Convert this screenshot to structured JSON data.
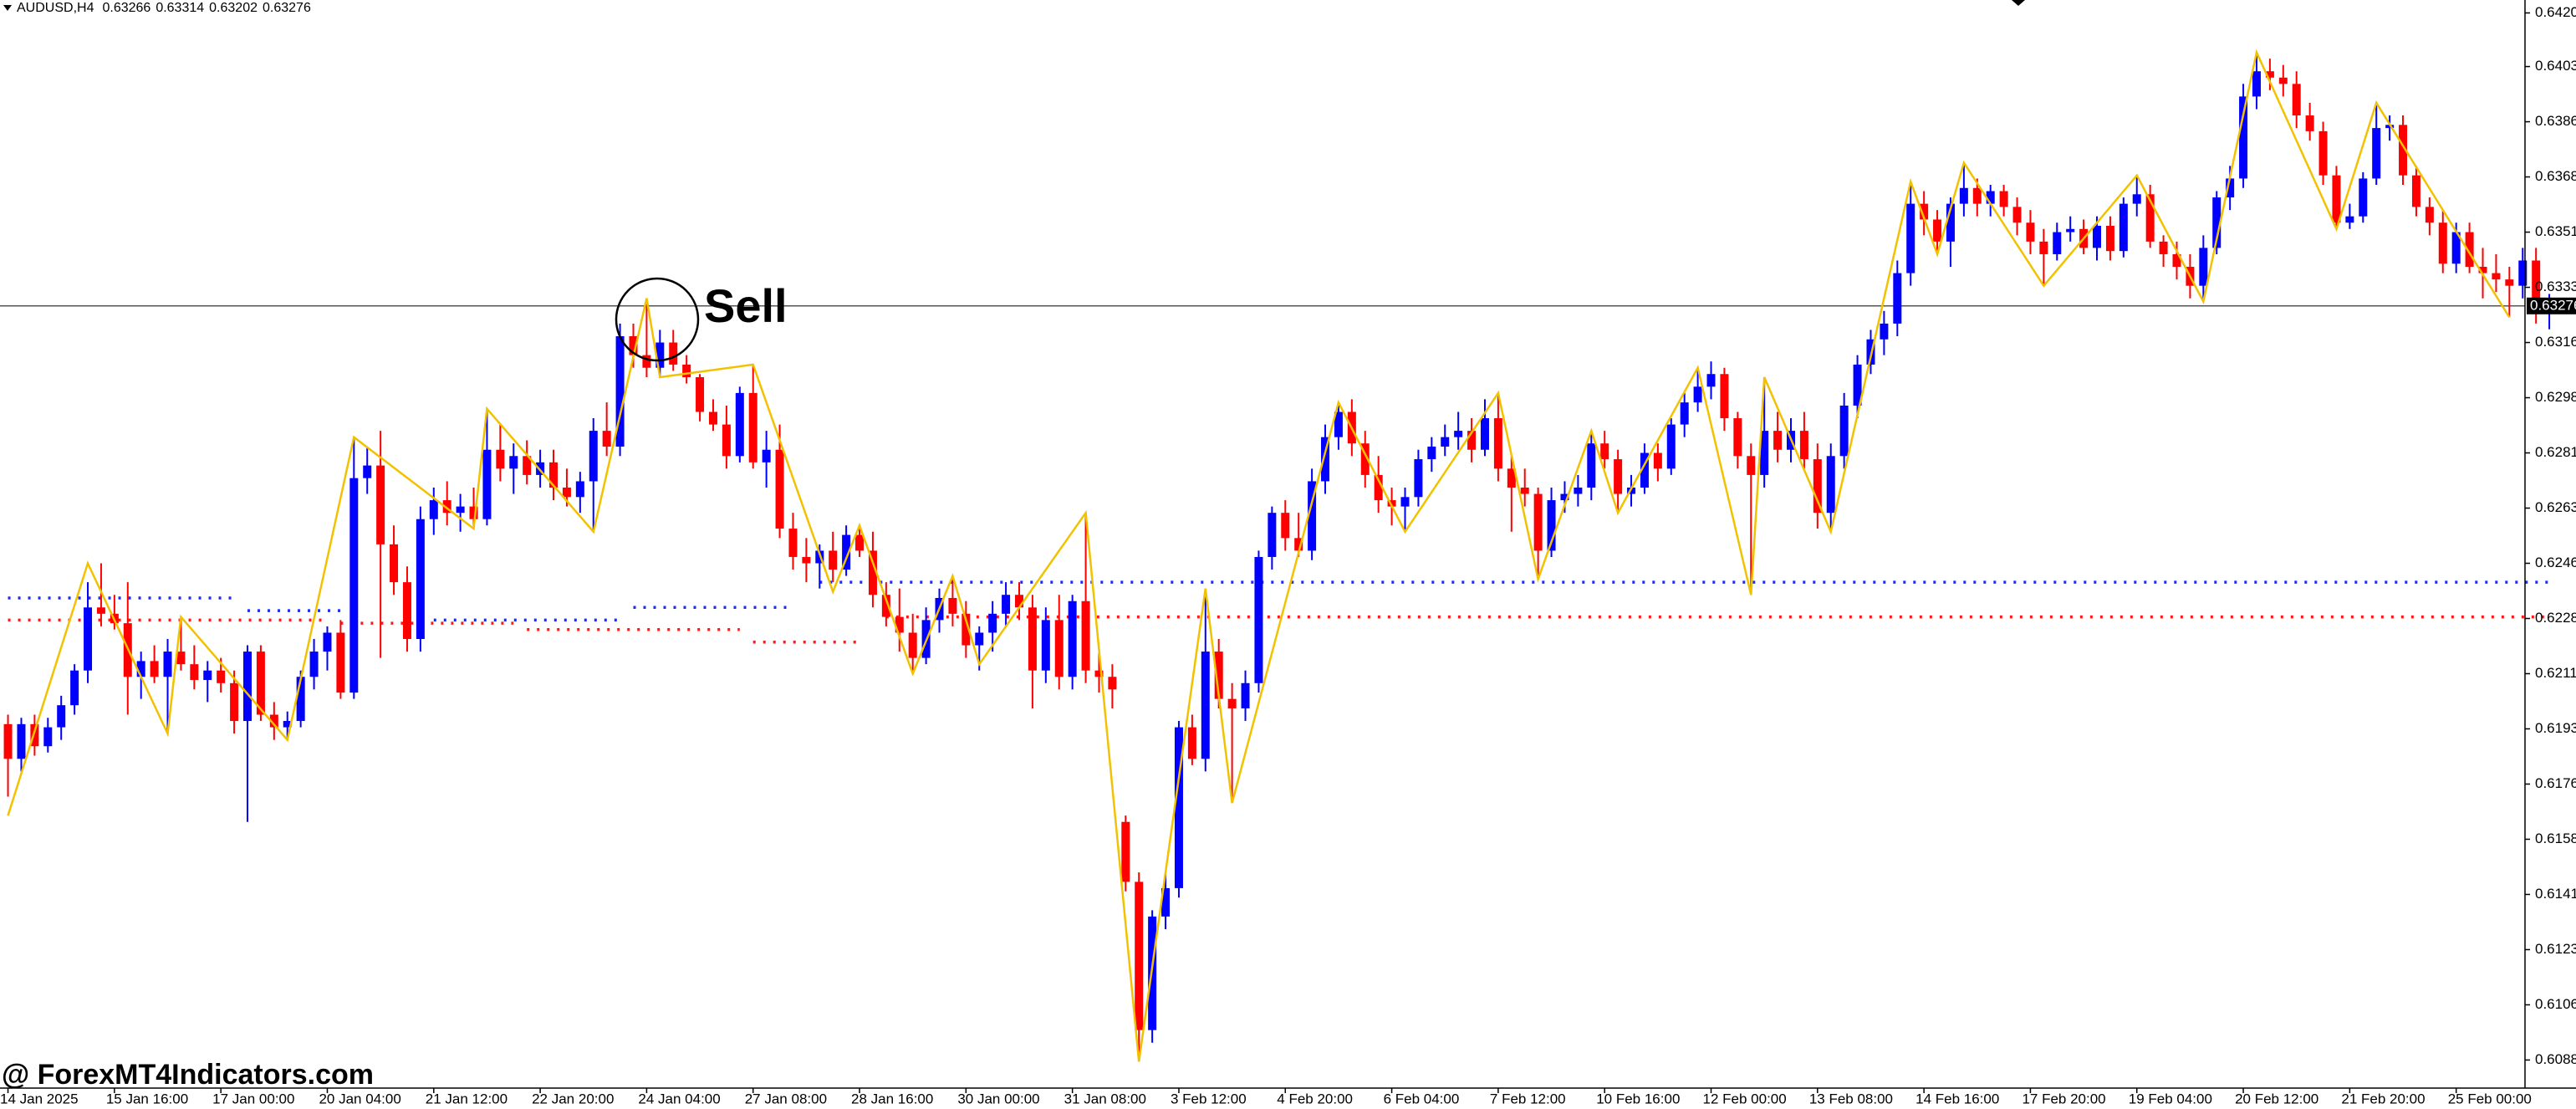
{
  "chart_data": {
    "type": "candlestick",
    "symbol": "AUDUSD,H4",
    "header_values": [
      0.63266,
      0.63314,
      0.63202,
      0.63276
    ],
    "annotation": "Sell",
    "watermark": "@ ForexMT4Indicators.com",
    "colors": {
      "up": "#0000ff",
      "down": "#ff0000",
      "zigzag": "#f2c200",
      "blue_levels": "#1a2cff",
      "red_levels": "#ff1a1a",
      "current_price": "#555555"
    },
    "ylim": [
      0.60796,
      0.64246
    ],
    "xlim": [
      -0.6,
      192
    ],
    "yticks": [
      0.64205,
      0.64035,
      {
        "value": 0.6386,
        "label": "0.63860"
      },
      0.63685,
      {
        "value": 0.6351,
        "label": "0.63510"
      },
      0.63335,
      {
        "value": 0.6316,
        "label": "0.63160"
      },
      0.62985,
      {
        "value": 0.6281,
        "label": "0.62810"
      },
      0.62635,
      {
        "value": 0.6246,
        "label": "0.62460"
      },
      0.62285,
      {
        "value": 0.6211,
        "label": "0.62110"
      },
      0.61935,
      {
        "value": 0.6176,
        "label": "0.61760"
      },
      0.61585,
      {
        "value": 0.6141,
        "label": "0.61410"
      },
      0.61235,
      {
        "value": 0.6106,
        "label": "0.61060"
      },
      0.60885
    ],
    "current_price": 0.63276,
    "categories": [
      "14 Jan 2025",
      null,
      null,
      null,
      null,
      null,
      null,
      null,
      "15 Jan 16:00",
      null,
      null,
      null,
      null,
      null,
      null,
      null,
      "17 Jan 00:00",
      null,
      null,
      null,
      null,
      null,
      null,
      null,
      "20 Jan 04:00",
      null,
      null,
      null,
      null,
      null,
      null,
      null,
      "21 Jan 12:00",
      null,
      null,
      null,
      null,
      null,
      null,
      null,
      "22 Jan 20:00",
      null,
      null,
      null,
      null,
      null,
      null,
      null,
      "24 Jan 04:00",
      null,
      null,
      null,
      null,
      null,
      null,
      null,
      "27 Jan 08:00",
      null,
      null,
      null,
      null,
      null,
      null,
      null,
      "28 Jan 16:00",
      null,
      null,
      null,
      null,
      null,
      null,
      null,
      "30 Jan 00:00",
      null,
      null,
      null,
      null,
      null,
      null,
      null,
      "31 Jan 08:00",
      null,
      null,
      null,
      null,
      null,
      null,
      null,
      "3 Feb 12:00",
      null,
      null,
      null,
      null,
      null,
      null,
      null,
      "4 Feb 20:00",
      null,
      null,
      null,
      null,
      null,
      null,
      null,
      "6 Feb 04:00",
      null,
      null,
      null,
      null,
      null,
      null,
      null,
      "7 Feb 12:00",
      null,
      null,
      null,
      null,
      null,
      null,
      null,
      "10 Feb 16:00",
      null,
      null,
      null,
      null,
      null,
      null,
      null,
      "12 Feb 00:00",
      null,
      null,
      null,
      null,
      null,
      null,
      null,
      "13 Feb 08:00",
      null,
      null,
      null,
      null,
      null,
      null,
      null,
      "14 Feb 16:00",
      null,
      null,
      null,
      null,
      null,
      null,
      null,
      "17 Feb 20:00",
      null,
      null,
      null,
      null,
      null,
      null,
      null,
      "19 Feb 04:00",
      null,
      null,
      null,
      null,
      null,
      null,
      null,
      "20 Feb 12:00",
      null,
      null,
      null,
      null,
      null,
      null,
      null,
      "21 Feb 20:00",
      null,
      null,
      null,
      null,
      null,
      null,
      null,
      "25 Feb 00:00",
      null,
      null,
      null,
      null,
      null,
      null,
      null
    ],
    "open": [
      0.6195,
      0.6184,
      0.6195,
      0.6188,
      0.6194,
      0.6201,
      0.6212,
      0.6232,
      0.623,
      0.6227,
      0.621,
      0.6215,
      0.621,
      0.6218,
      0.6214,
      0.6209,
      0.6212,
      0.6208,
      0.6196,
      0.6218,
      0.6198,
      0.6194,
      0.6196,
      0.621,
      0.6218,
      0.6224,
      0.6205,
      0.6273,
      0.6277,
      0.6252,
      0.624,
      0.6222,
      0.626,
      0.6266,
      0.6262,
      0.6264,
      0.626,
      0.6282,
      0.6276,
      0.628,
      0.6274,
      0.6278,
      0.627,
      0.6267,
      0.6272,
      0.6288,
      0.6283,
      0.6318,
      0.6312,
      0.6308,
      0.6316,
      0.6309,
      0.6305,
      0.6294,
      0.629,
      0.628,
      0.63,
      0.6278,
      0.6282,
      0.6257,
      0.6248,
      0.6246,
      0.625,
      0.6244,
      0.6255,
      0.625,
      0.6236,
      0.6229,
      0.6224,
      0.6216,
      0.6228,
      0.6235,
      0.623,
      0.622,
      0.6224,
      0.623,
      0.6236,
      0.6232,
      0.6212,
      0.6228,
      0.621,
      0.6234,
      0.6212,
      0.621,
      0.6164,
      0.6145,
      0.6098,
      0.6134,
      0.6143,
      0.6194,
      0.6184,
      0.6218,
      0.6203,
      0.62,
      0.6208,
      0.6248,
      0.6262,
      0.6254,
      0.625,
      0.6272,
      0.6286,
      0.6294,
      0.6284,
      0.6274,
      0.6266,
      0.6264,
      0.6267,
      0.6279,
      0.6283,
      0.6286,
      0.6288,
      0.6282,
      0.6292,
      0.6276,
      0.627,
      0.6268,
      0.625,
      0.6266,
      0.6268,
      0.627,
      0.6284,
      0.6279,
      0.6268,
      0.627,
      0.6281,
      0.6276,
      0.629,
      0.6297,
      0.6302,
      0.6306,
      0.6292,
      0.628,
      0.6274,
      0.6288,
      0.6282,
      0.6288,
      0.6279,
      0.6262,
      0.628,
      0.6296,
      0.6309,
      0.6317,
      0.6322,
      0.6338,
      0.636,
      0.6355,
      0.6348,
      0.636,
      0.6365,
      0.636,
      0.6364,
      0.6359,
      0.6354,
      0.6348,
      0.6344,
      0.6351,
      0.6352,
      0.6346,
      0.6353,
      0.6345,
      0.636,
      0.6363,
      0.6348,
      0.6344,
      0.634,
      0.6334,
      0.6346,
      0.6362,
      0.6368,
      0.6394,
      0.6402,
      0.64,
      0.6398,
      0.6388,
      0.6383,
      0.6369,
      0.6354,
      0.6356,
      0.6368,
      0.6384,
      0.6385,
      0.6369,
      0.6359,
      0.6354,
      0.6341,
      0.6351,
      0.634,
      0.6338,
      0.6336,
      0.6334,
      0.6342,
      0.63266
    ],
    "high": [
      0.6198,
      0.6197,
      0.6198,
      0.6197,
      0.6204,
      0.6214,
      0.624,
      0.6246,
      0.6236,
      0.624,
      0.6218,
      0.622,
      0.6222,
      0.6229,
      0.622,
      0.6215,
      0.6216,
      0.6212,
      0.622,
      0.622,
      0.6202,
      0.6199,
      0.6212,
      0.6222,
      0.6226,
      0.6228,
      0.6286,
      0.6283,
      0.6288,
      0.6258,
      0.6245,
      0.6264,
      0.627,
      0.6272,
      0.6268,
      0.627,
      0.6295,
      0.629,
      0.6284,
      0.6285,
      0.6282,
      0.6282,
      0.6276,
      0.6275,
      0.6292,
      0.6297,
      0.6322,
      0.6322,
      0.633,
      0.632,
      0.632,
      0.6312,
      0.6306,
      0.6298,
      0.6296,
      0.6302,
      0.6309,
      0.6288,
      0.629,
      0.6262,
      0.6254,
      0.6252,
      0.6256,
      0.6258,
      0.6258,
      0.6256,
      0.624,
      0.6238,
      0.623,
      0.6232,
      0.6238,
      0.6242,
      0.6234,
      0.6226,
      0.6234,
      0.624,
      0.624,
      0.6236,
      0.6232,
      0.6236,
      0.6236,
      0.6262,
      0.6218,
      0.6214,
      0.6166,
      0.6148,
      0.6136,
      0.6148,
      0.6196,
      0.6198,
      0.6238,
      0.6222,
      0.6208,
      0.6212,
      0.625,
      0.6264,
      0.6266,
      0.6262,
      0.6276,
      0.629,
      0.6297,
      0.6298,
      0.6288,
      0.628,
      0.627,
      0.627,
      0.6282,
      0.6286,
      0.629,
      0.6294,
      0.6292,
      0.6298,
      0.63,
      0.628,
      0.6276,
      0.627,
      0.627,
      0.6272,
      0.6274,
      0.6288,
      0.6288,
      0.6282,
      0.6274,
      0.6284,
      0.6284,
      0.6292,
      0.63,
      0.6308,
      0.631,
      0.6308,
      0.6294,
      0.6284,
      0.6305,
      0.6294,
      0.6292,
      0.6294,
      0.6284,
      0.6284,
      0.63,
      0.6312,
      0.632,
      0.6326,
      0.6342,
      0.6367,
      0.6364,
      0.6358,
      0.6362,
      0.6373,
      0.6368,
      0.6366,
      0.6366,
      0.6362,
      0.6358,
      0.6352,
      0.6354,
      0.6356,
      0.6355,
      0.6356,
      0.6356,
      0.6362,
      0.6369,
      0.6366,
      0.635,
      0.6348,
      0.6344,
      0.635,
      0.6364,
      0.6372,
      0.6398,
      0.6408,
      0.6406,
      0.6404,
      0.6402,
      0.6392,
      0.6386,
      0.6372,
      0.636,
      0.637,
      0.6392,
      0.6388,
      0.6388,
      0.6372,
      0.6362,
      0.6358,
      0.6354,
      0.6354,
      0.6346,
      0.6344,
      0.634,
      0.6346,
      0.6346,
      0.63314
    ],
    "low": [
      0.6172,
      0.618,
      0.6185,
      0.6186,
      0.619,
      0.6198,
      0.6208,
      0.6226,
      0.6225,
      0.6198,
      0.6203,
      0.6208,
      0.6192,
      0.6212,
      0.6206,
      0.6202,
      0.6205,
      0.6192,
      0.6164,
      0.6196,
      0.619,
      0.619,
      0.6194,
      0.6206,
      0.6212,
      0.6203,
      0.6203,
      0.6268,
      0.6216,
      0.6236,
      0.6218,
      0.6218,
      0.6255,
      0.6258,
      0.6256,
      0.6257,
      0.6258,
      0.6272,
      0.6268,
      0.6271,
      0.627,
      0.6266,
      0.6264,
      0.6262,
      0.6256,
      0.628,
      0.628,
      0.6308,
      0.6305,
      0.6305,
      0.6307,
      0.6303,
      0.6291,
      0.6288,
      0.6276,
      0.6278,
      0.6276,
      0.627,
      0.6254,
      0.6244,
      0.624,
      0.6238,
      0.624,
      0.6242,
      0.6248,
      0.6232,
      0.6226,
      0.6218,
      0.6211,
      0.6214,
      0.6224,
      0.6226,
      0.6216,
      0.6212,
      0.6218,
      0.6226,
      0.6228,
      0.62,
      0.6208,
      0.6206,
      0.6206,
      0.6208,
      0.6205,
      0.62,
      0.6142,
      0.6088,
      0.6094,
      0.613,
      0.614,
      0.6182,
      0.618,
      0.62,
      0.617,
      0.6196,
      0.6205,
      0.6244,
      0.625,
      0.6248,
      0.6247,
      0.6268,
      0.6282,
      0.628,
      0.627,
      0.6262,
      0.6258,
      0.6256,
      0.6264,
      0.6275,
      0.628,
      0.6282,
      0.6278,
      0.628,
      0.6272,
      0.6256,
      0.6264,
      0.6241,
      0.6248,
      0.6262,
      0.6264,
      0.6266,
      0.6276,
      0.6262,
      0.6264,
      0.6268,
      0.6272,
      0.6274,
      0.6286,
      0.6294,
      0.6298,
      0.6288,
      0.6276,
      0.6236,
      0.627,
      0.6278,
      0.6278,
      0.6276,
      0.6257,
      0.6256,
      0.6276,
      0.6292,
      0.6306,
      0.6312,
      0.6318,
      0.6334,
      0.635,
      0.6344,
      0.634,
      0.6356,
      0.6356,
      0.6356,
      0.6356,
      0.635,
      0.6344,
      0.6334,
      0.6342,
      0.6348,
      0.6344,
      0.6342,
      0.6342,
      0.6343,
      0.6356,
      0.6346,
      0.634,
      0.6336,
      0.633,
      0.6329,
      0.6344,
      0.6358,
      0.6365,
      0.639,
      0.6396,
      0.6394,
      0.6384,
      0.638,
      0.6366,
      0.6352,
      0.6352,
      0.6354,
      0.6366,
      0.638,
      0.6366,
      0.6356,
      0.635,
      0.6338,
      0.6338,
      0.6338,
      0.633,
      0.6332,
      0.6324,
      0.633,
      0.6322,
      0.63202
    ],
    "close": [
      0.6184,
      0.6195,
      0.6188,
      0.6194,
      0.6201,
      0.6212,
      0.6232,
      0.623,
      0.6227,
      0.621,
      0.6215,
      0.621,
      0.6218,
      0.6214,
      0.6209,
      0.6212,
      0.6208,
      0.6196,
      0.6218,
      0.6198,
      0.6194,
      0.6196,
      0.621,
      0.6218,
      0.6224,
      0.6205,
      0.6273,
      0.6277,
      0.6252,
      0.624,
      0.6222,
      0.626,
      0.6266,
      0.6262,
      0.6264,
      0.626,
      0.6282,
      0.6276,
      0.628,
      0.6274,
      0.6278,
      0.627,
      0.6267,
      0.6272,
      0.6288,
      0.6283,
      0.6318,
      0.6312,
      0.6308,
      0.6316,
      0.6309,
      0.6305,
      0.6294,
      0.629,
      0.628,
      0.63,
      0.6278,
      0.6282,
      0.6257,
      0.6248,
      0.6246,
      0.625,
      0.6244,
      0.6255,
      0.625,
      0.6236,
      0.6229,
      0.6224,
      0.6216,
      0.6228,
      0.6235,
      0.623,
      0.622,
      0.6224,
      0.623,
      0.6236,
      0.6232,
      0.6212,
      0.6228,
      0.621,
      0.6234,
      0.6212,
      0.621,
      0.6206,
      0.6145,
      0.6098,
      0.6134,
      0.6143,
      0.6194,
      0.6184,
      0.6218,
      0.6203,
      0.62,
      0.6208,
      0.6248,
      0.6262,
      0.6254,
      0.625,
      0.6272,
      0.6286,
      0.6294,
      0.6284,
      0.6274,
      0.6266,
      0.6264,
      0.6267,
      0.6279,
      0.6283,
      0.6286,
      0.6288,
      0.6282,
      0.6292,
      0.6276,
      0.627,
      0.6268,
      0.625,
      0.6266,
      0.6268,
      0.627,
      0.6284,
      0.6279,
      0.6268,
      0.627,
      0.6281,
      0.6276,
      0.629,
      0.6297,
      0.6302,
      0.6306,
      0.6292,
      0.628,
      0.6274,
      0.6288,
      0.6282,
      0.6288,
      0.6279,
      0.6262,
      0.628,
      0.6296,
      0.6309,
      0.6317,
      0.6322,
      0.6338,
      0.636,
      0.6355,
      0.6348,
      0.636,
      0.6365,
      0.636,
      0.6364,
      0.6359,
      0.6354,
      0.6348,
      0.6344,
      0.6351,
      0.6352,
      0.6346,
      0.6353,
      0.6345,
      0.636,
      0.6363,
      0.6348,
      0.6344,
      0.634,
      0.6334,
      0.6346,
      0.6362,
      0.6368,
      0.6394,
      0.6402,
      0.64,
      0.6398,
      0.6388,
      0.6383,
      0.6369,
      0.6354,
      0.6356,
      0.6368,
      0.6384,
      0.6385,
      0.6369,
      0.6359,
      0.6354,
      0.6341,
      0.6351,
      0.634,
      0.6338,
      0.6336,
      0.6334,
      0.6342,
      0.6326,
      0.63276
    ],
    "zigzag": {
      "x": [
        0,
        6,
        12,
        13,
        21,
        26,
        35,
        36,
        44,
        48,
        49,
        56,
        62,
        64,
        68,
        71,
        73,
        81,
        85,
        90,
        92,
        100,
        105,
        112,
        115,
        119,
        121,
        127,
        131,
        132,
        137,
        143,
        145,
        147,
        153,
        160,
        165,
        169,
        175,
        178,
        188
      ],
      "values": [
        0.6166,
        0.6246,
        0.6192,
        0.6229,
        0.619,
        0.6286,
        0.6257,
        0.6295,
        0.6256,
        0.633,
        0.6305,
        0.6309,
        0.6237,
        0.6258,
        0.6211,
        0.6242,
        0.6214,
        0.6262,
        0.6088,
        0.6238,
        0.617,
        0.6297,
        0.6256,
        0.63,
        0.6241,
        0.6288,
        0.6262,
        0.6308,
        0.6236,
        0.6305,
        0.6256,
        0.6367,
        0.6344,
        0.6373,
        0.6334,
        0.6369,
        0.6329,
        0.6408,
        0.6352,
        0.6392,
        0.6324
      ]
    },
    "blue_levels": [
      {
        "start": 0,
        "end": 17,
        "value": 0.6235
      },
      {
        "start": 18,
        "end": 25,
        "value": 0.6231
      },
      {
        "start": 32,
        "end": 46,
        "value": 0.6228
      },
      {
        "start": 47,
        "end": 59,
        "value": 0.6232
      },
      {
        "start": 61,
        "end": 191,
        "value": 0.624
      }
    ],
    "red_levels": [
      {
        "start": 0,
        "end": 24,
        "value": 0.6228
      },
      {
        "start": 25,
        "end": 38,
        "value": 0.6227
      },
      {
        "start": 39,
        "end": 55,
        "value": 0.6225
      },
      {
        "start": 56,
        "end": 64,
        "value": 0.6221
      },
      {
        "start": 66,
        "end": 191,
        "value": 0.6229
      }
    ]
  }
}
